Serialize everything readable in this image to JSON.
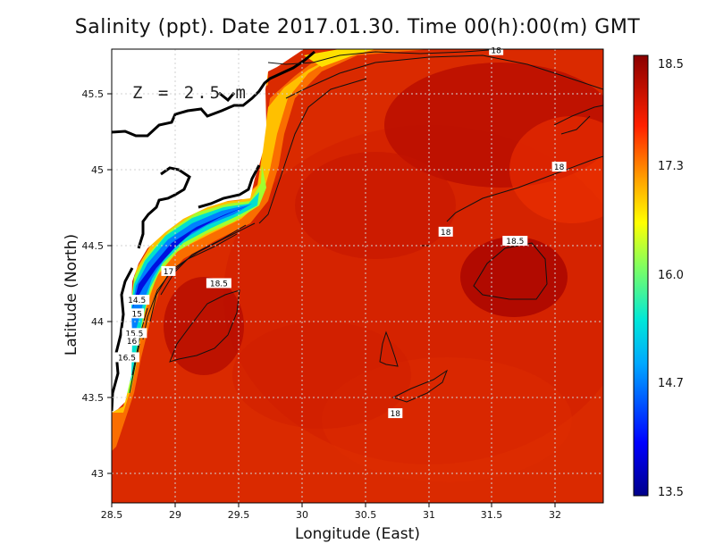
{
  "title": "Salinity (ppt). Date 2017.01.30. Time 00(h):00(m) GMT",
  "depth_label": "Z = 2.5 m",
  "xlabel": "Longitude (East)",
  "ylabel": "Latitude (North)",
  "map": {
    "lon_range": [
      28.5,
      32.4
    ],
    "lat_range": [
      42.8,
      45.8
    ],
    "x_ticks": [
      "28.5",
      "29",
      "29.5",
      "30",
      "30.5",
      "31",
      "31.5",
      "32"
    ],
    "y_ticks": [
      "43",
      "43.5",
      "44",
      "44.5",
      "45",
      "45.5"
    ],
    "grid": "dotted",
    "field": "salinity",
    "contour_labels": [
      {
        "text": "18",
        "lon": 31.55,
        "lat": 45.79
      },
      {
        "text": "18",
        "lon": 32.05,
        "lat": 45.02
      },
      {
        "text": "18",
        "lon": 31.15,
        "lat": 44.59
      },
      {
        "text": "18.5",
        "lon": 31.7,
        "lat": 44.53
      },
      {
        "text": "18.5",
        "lon": 29.35,
        "lat": 44.25
      },
      {
        "text": "17",
        "lon": 28.95,
        "lat": 44.33
      },
      {
        "text": "14.5",
        "lon": 28.7,
        "lat": 44.14
      },
      {
        "text": "15",
        "lon": 28.7,
        "lat": 44.05
      },
      {
        "text": "15.5",
        "lon": 28.68,
        "lat": 43.92
      },
      {
        "text": "16",
        "lon": 28.66,
        "lat": 43.87
      },
      {
        "text": "16.5",
        "lon": 28.62,
        "lat": 43.76
      },
      {
        "text": "18",
        "lon": 30.75,
        "lat": 43.39
      }
    ]
  },
  "colorbar": {
    "tick_labels": [
      "18.5",
      "17.3",
      "16.0",
      "14.7",
      "13.5"
    ],
    "min": 13.5,
    "max": 18.5
  }
}
